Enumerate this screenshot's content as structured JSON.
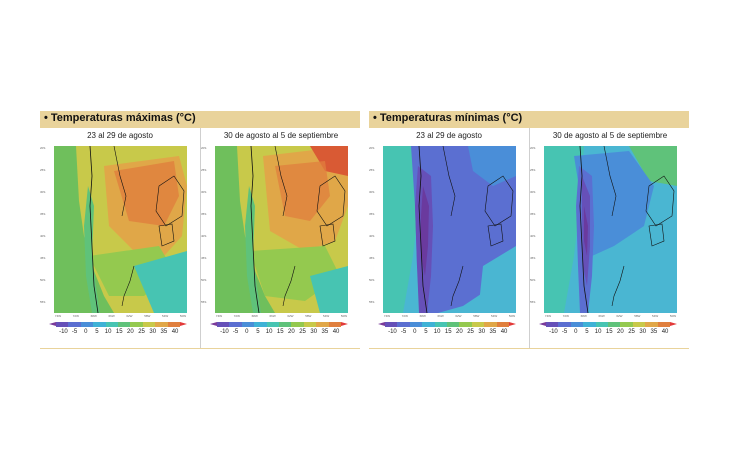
{
  "panels": [
    {
      "title": "Temperaturas máximas (°C)",
      "bullet": "•",
      "periods": [
        "23 al 29 de agosto",
        "30 de agosto al 5 de septiembre"
      ]
    },
    {
      "title": "Temperaturas mínimas (°C)",
      "bullet": "•",
      "periods": [
        "23 al 29 de agosto",
        "30 de agosto al 5 de septiembre"
      ]
    }
  ],
  "legend": {
    "ticks": [
      "-10",
      "-5",
      "0",
      "5",
      "10",
      "15",
      "20",
      "25",
      "30",
      "35",
      "40"
    ],
    "colors": [
      "#6a3a9e",
      "#6650b8",
      "#5b6fd1",
      "#4a8ed8",
      "#3fb2d6",
      "#47c4b2",
      "#5fc27a",
      "#94c94f",
      "#c8c94a",
      "#e0a748",
      "#e07f3d",
      "#d95a34"
    ]
  },
  "map_axis": {
    "lat_labels": [
      "20S",
      "25S",
      "30S",
      "35S",
      "40S",
      "45S",
      "50S",
      "55S"
    ],
    "lon_labels": [
      "74W",
      "72W",
      "68W",
      "66W",
      "62W",
      "58W",
      "54W",
      "50W"
    ]
  },
  "colors": {
    "header": "#e9d39b",
    "ocean_max": "#6fbf5c",
    "ocean_min": "#4ab6d2"
  }
}
